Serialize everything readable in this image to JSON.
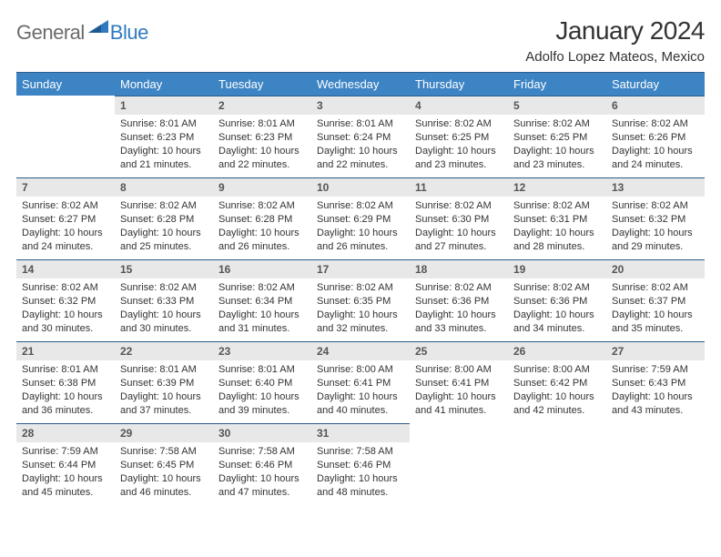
{
  "logo": {
    "text1": "General",
    "text2": "Blue",
    "tri_color": "#2f7abf"
  },
  "title": "January 2024",
  "location": "Adolfo Lopez Mateos, Mexico",
  "colors": {
    "header_bg": "#3d84c4",
    "header_border": "#2a5d8a",
    "daynum_bg": "#e8e8e8",
    "text": "#333333"
  },
  "weekdays": [
    "Sunday",
    "Monday",
    "Tuesday",
    "Wednesday",
    "Thursday",
    "Friday",
    "Saturday"
  ],
  "start_offset": 1,
  "days": [
    {
      "n": 1,
      "sr": "8:01 AM",
      "ss": "6:23 PM",
      "dl": "10 hours and 21 minutes."
    },
    {
      "n": 2,
      "sr": "8:01 AM",
      "ss": "6:23 PM",
      "dl": "10 hours and 22 minutes."
    },
    {
      "n": 3,
      "sr": "8:01 AM",
      "ss": "6:24 PM",
      "dl": "10 hours and 22 minutes."
    },
    {
      "n": 4,
      "sr": "8:02 AM",
      "ss": "6:25 PM",
      "dl": "10 hours and 23 minutes."
    },
    {
      "n": 5,
      "sr": "8:02 AM",
      "ss": "6:25 PM",
      "dl": "10 hours and 23 minutes."
    },
    {
      "n": 6,
      "sr": "8:02 AM",
      "ss": "6:26 PM",
      "dl": "10 hours and 24 minutes."
    },
    {
      "n": 7,
      "sr": "8:02 AM",
      "ss": "6:27 PM",
      "dl": "10 hours and 24 minutes."
    },
    {
      "n": 8,
      "sr": "8:02 AM",
      "ss": "6:28 PM",
      "dl": "10 hours and 25 minutes."
    },
    {
      "n": 9,
      "sr": "8:02 AM",
      "ss": "6:28 PM",
      "dl": "10 hours and 26 minutes."
    },
    {
      "n": 10,
      "sr": "8:02 AM",
      "ss": "6:29 PM",
      "dl": "10 hours and 26 minutes."
    },
    {
      "n": 11,
      "sr": "8:02 AM",
      "ss": "6:30 PM",
      "dl": "10 hours and 27 minutes."
    },
    {
      "n": 12,
      "sr": "8:02 AM",
      "ss": "6:31 PM",
      "dl": "10 hours and 28 minutes."
    },
    {
      "n": 13,
      "sr": "8:02 AM",
      "ss": "6:32 PM",
      "dl": "10 hours and 29 minutes."
    },
    {
      "n": 14,
      "sr": "8:02 AM",
      "ss": "6:32 PM",
      "dl": "10 hours and 30 minutes."
    },
    {
      "n": 15,
      "sr": "8:02 AM",
      "ss": "6:33 PM",
      "dl": "10 hours and 30 minutes."
    },
    {
      "n": 16,
      "sr": "8:02 AM",
      "ss": "6:34 PM",
      "dl": "10 hours and 31 minutes."
    },
    {
      "n": 17,
      "sr": "8:02 AM",
      "ss": "6:35 PM",
      "dl": "10 hours and 32 minutes."
    },
    {
      "n": 18,
      "sr": "8:02 AM",
      "ss": "6:36 PM",
      "dl": "10 hours and 33 minutes."
    },
    {
      "n": 19,
      "sr": "8:02 AM",
      "ss": "6:36 PM",
      "dl": "10 hours and 34 minutes."
    },
    {
      "n": 20,
      "sr": "8:02 AM",
      "ss": "6:37 PM",
      "dl": "10 hours and 35 minutes."
    },
    {
      "n": 21,
      "sr": "8:01 AM",
      "ss": "6:38 PM",
      "dl": "10 hours and 36 minutes."
    },
    {
      "n": 22,
      "sr": "8:01 AM",
      "ss": "6:39 PM",
      "dl": "10 hours and 37 minutes."
    },
    {
      "n": 23,
      "sr": "8:01 AM",
      "ss": "6:40 PM",
      "dl": "10 hours and 39 minutes."
    },
    {
      "n": 24,
      "sr": "8:00 AM",
      "ss": "6:41 PM",
      "dl": "10 hours and 40 minutes."
    },
    {
      "n": 25,
      "sr": "8:00 AM",
      "ss": "6:41 PM",
      "dl": "10 hours and 41 minutes."
    },
    {
      "n": 26,
      "sr": "8:00 AM",
      "ss": "6:42 PM",
      "dl": "10 hours and 42 minutes."
    },
    {
      "n": 27,
      "sr": "7:59 AM",
      "ss": "6:43 PM",
      "dl": "10 hours and 43 minutes."
    },
    {
      "n": 28,
      "sr": "7:59 AM",
      "ss": "6:44 PM",
      "dl": "10 hours and 45 minutes."
    },
    {
      "n": 29,
      "sr": "7:58 AM",
      "ss": "6:45 PM",
      "dl": "10 hours and 46 minutes."
    },
    {
      "n": 30,
      "sr": "7:58 AM",
      "ss": "6:46 PM",
      "dl": "10 hours and 47 minutes."
    },
    {
      "n": 31,
      "sr": "7:58 AM",
      "ss": "6:46 PM",
      "dl": "10 hours and 48 minutes."
    }
  ],
  "labels": {
    "sunrise": "Sunrise:",
    "sunset": "Sunset:",
    "daylight": "Daylight:"
  }
}
